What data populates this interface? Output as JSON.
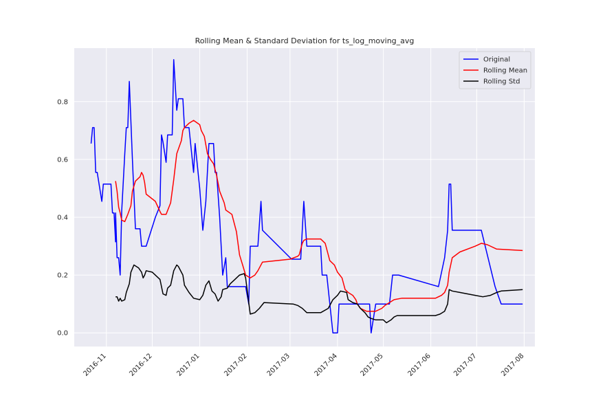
{
  "chart_data": {
    "type": "line",
    "title": "Rolling Mean & Standard Deviation for ts_log_moving_avg",
    "xlabel": "",
    "ylabel": "",
    "x_type": "date",
    "xlim": [
      "2016-10-11",
      "2017-08-08"
    ],
    "ylim": [
      -0.047,
      0.985
    ],
    "x_ticks": [
      "2016-11-01",
      "2016-12-01",
      "2017-01-01",
      "2017-02-01",
      "2017-03-01",
      "2017-04-01",
      "2017-05-01",
      "2017-06-01",
      "2017-07-01",
      "2017-08-01"
    ],
    "x_tick_labels": [
      "2016-11",
      "2016-12",
      "2017-01",
      "2017-02",
      "2017-03",
      "2017-04",
      "2017-05",
      "2017-06",
      "2017-07",
      "2017-08"
    ],
    "y_ticks": [
      0.0,
      0.2,
      0.4,
      0.6,
      0.8
    ],
    "y_tick_labels": [
      "0.0",
      "0.2",
      "0.4",
      "0.6",
      "0.8"
    ],
    "grid": true,
    "background": "#eaeaf2",
    "legend_position": "top-right",
    "series": [
      {
        "name": "Original",
        "color": "#0000ff",
        "points": [
          [
            "2016-10-22",
            0.655
          ],
          [
            "2016-10-23",
            0.71
          ],
          [
            "2016-10-24",
            0.71
          ],
          [
            "2016-10-25",
            0.555
          ],
          [
            "2016-10-26",
            0.555
          ],
          [
            "2016-10-29",
            0.455
          ],
          [
            "2016-10-30",
            0.515
          ],
          [
            "2016-11-04",
            0.515
          ],
          [
            "2016-11-05",
            0.415
          ],
          [
            "2016-11-06",
            0.415
          ],
          [
            "2016-11-07",
            0.315
          ],
          [
            "2016-11-07",
            0.415
          ],
          [
            "2016-11-08",
            0.26
          ],
          [
            "2016-11-09",
            0.26
          ],
          [
            "2016-11-10",
            0.2
          ],
          [
            "2016-11-11",
            0.42
          ],
          [
            "2016-11-13",
            0.62
          ],
          [
            "2016-11-14",
            0.71
          ],
          [
            "2016-11-15",
            0.71
          ],
          [
            "2016-11-16",
            0.87
          ],
          [
            "2016-11-18",
            0.6
          ],
          [
            "2016-11-20",
            0.36
          ],
          [
            "2016-11-23",
            0.36
          ],
          [
            "2016-11-24",
            0.3
          ],
          [
            "2016-11-27",
            0.3
          ],
          [
            "2016-12-03",
            0.4
          ],
          [
            "2016-12-06",
            0.44
          ],
          [
            "2016-12-07",
            0.685
          ],
          [
            "2016-12-08",
            0.66
          ],
          [
            "2016-12-10",
            0.59
          ],
          [
            "2016-12-11",
            0.685
          ],
          [
            "2016-12-14",
            0.685
          ],
          [
            "2016-12-15",
            0.945
          ],
          [
            "2016-12-17",
            0.77
          ],
          [
            "2016-12-18",
            0.81
          ],
          [
            "2016-12-21",
            0.81
          ],
          [
            "2016-12-22",
            0.71
          ],
          [
            "2016-12-25",
            0.71
          ],
          [
            "2016-12-28",
            0.555
          ],
          [
            "2016-12-29",
            0.655
          ],
          [
            "2017-01-01",
            0.5
          ],
          [
            "2017-01-03",
            0.355
          ],
          [
            "2017-01-05",
            0.455
          ],
          [
            "2017-01-07",
            0.655
          ],
          [
            "2017-01-10",
            0.655
          ],
          [
            "2017-01-11",
            0.555
          ],
          [
            "2017-01-12",
            0.555
          ],
          [
            "2017-01-14",
            0.4
          ],
          [
            "2017-01-16",
            0.2
          ],
          [
            "2017-01-18",
            0.26
          ],
          [
            "2017-01-19",
            0.16
          ],
          [
            "2017-01-26",
            0.16
          ],
          [
            "2017-01-31",
            0.16
          ],
          [
            "2017-02-02",
            0.1
          ],
          [
            "2017-02-03",
            0.3
          ],
          [
            "2017-02-08",
            0.3
          ],
          [
            "2017-02-10",
            0.455
          ],
          [
            "2017-02-11",
            0.355
          ],
          [
            "2017-03-02",
            0.255
          ],
          [
            "2017-03-08",
            0.255
          ],
          [
            "2017-03-10",
            0.455
          ],
          [
            "2017-03-12",
            0.3
          ],
          [
            "2017-03-21",
            0.3
          ],
          [
            "2017-03-22",
            0.2
          ],
          [
            "2017-03-25",
            0.2
          ],
          [
            "2017-03-29",
            0.0
          ],
          [
            "2017-04-01",
            0.0
          ],
          [
            "2017-04-02",
            0.1
          ],
          [
            "2017-04-22",
            0.1
          ],
          [
            "2017-04-23",
            0.0
          ],
          [
            "2017-04-26",
            0.1
          ],
          [
            "2017-05-05",
            0.1
          ],
          [
            "2017-05-07",
            0.2
          ],
          [
            "2017-05-11",
            0.2
          ],
          [
            "2017-06-06",
            0.16
          ],
          [
            "2017-06-10",
            0.26
          ],
          [
            "2017-06-12",
            0.355
          ],
          [
            "2017-06-13",
            0.515
          ],
          [
            "2017-06-14",
            0.515
          ],
          [
            "2017-06-15",
            0.355
          ],
          [
            "2017-07-04",
            0.355
          ],
          [
            "2017-07-13",
            0.16
          ],
          [
            "2017-07-17",
            0.1
          ],
          [
            "2017-07-31",
            0.1
          ]
        ]
      },
      {
        "name": "Rolling Mean",
        "color": "#ff0000",
        "points": [
          [
            "2016-11-07",
            0.525
          ],
          [
            "2016-11-08",
            0.49
          ],
          [
            "2016-11-09",
            0.435
          ],
          [
            "2016-11-10",
            0.415
          ],
          [
            "2016-11-11",
            0.39
          ],
          [
            "2016-11-13",
            0.385
          ],
          [
            "2016-11-15",
            0.41
          ],
          [
            "2016-11-17",
            0.44
          ],
          [
            "2016-11-18",
            0.49
          ],
          [
            "2016-11-20",
            0.525
          ],
          [
            "2016-11-23",
            0.54
          ],
          [
            "2016-11-24",
            0.555
          ],
          [
            "2016-11-25",
            0.545
          ],
          [
            "2016-11-26",
            0.52
          ],
          [
            "2016-11-27",
            0.48
          ],
          [
            "2016-12-03",
            0.455
          ],
          [
            "2016-12-06",
            0.42
          ],
          [
            "2016-12-07",
            0.41
          ],
          [
            "2016-12-10",
            0.41
          ],
          [
            "2016-12-13",
            0.45
          ],
          [
            "2016-12-15",
            0.53
          ],
          [
            "2016-12-17",
            0.62
          ],
          [
            "2016-12-20",
            0.665
          ],
          [
            "2016-12-21",
            0.7
          ],
          [
            "2016-12-22",
            0.71
          ],
          [
            "2016-12-25",
            0.725
          ],
          [
            "2016-12-28",
            0.735
          ],
          [
            "2017-01-01",
            0.72
          ],
          [
            "2017-01-02",
            0.7
          ],
          [
            "2017-01-04",
            0.68
          ],
          [
            "2017-01-06",
            0.62
          ],
          [
            "2017-01-08",
            0.6
          ],
          [
            "2017-01-10",
            0.585
          ],
          [
            "2017-01-12",
            0.545
          ],
          [
            "2017-01-14",
            0.49
          ],
          [
            "2017-01-17",
            0.45
          ],
          [
            "2017-01-18",
            0.425
          ],
          [
            "2017-01-22",
            0.41
          ],
          [
            "2017-01-25",
            0.35
          ],
          [
            "2017-01-27",
            0.27
          ],
          [
            "2017-01-29",
            0.235
          ],
          [
            "2017-01-31",
            0.2
          ],
          [
            "2017-02-03",
            0.19
          ],
          [
            "2017-02-06",
            0.2
          ],
          [
            "2017-02-08",
            0.215
          ],
          [
            "2017-02-11",
            0.245
          ],
          [
            "2017-03-01",
            0.255
          ],
          [
            "2017-03-06",
            0.265
          ],
          [
            "2017-03-07",
            0.27
          ],
          [
            "2017-03-09",
            0.31
          ],
          [
            "2017-03-10",
            0.32
          ],
          [
            "2017-03-12",
            0.325
          ],
          [
            "2017-03-21",
            0.325
          ],
          [
            "2017-03-24",
            0.31
          ],
          [
            "2017-03-27",
            0.25
          ],
          [
            "2017-03-30",
            0.235
          ],
          [
            "2017-04-01",
            0.21
          ],
          [
            "2017-04-04",
            0.19
          ],
          [
            "2017-04-06",
            0.15
          ],
          [
            "2017-04-08",
            0.14
          ],
          [
            "2017-04-11",
            0.13
          ],
          [
            "2017-04-13",
            0.115
          ],
          [
            "2017-04-14",
            0.1
          ],
          [
            "2017-04-16",
            0.085
          ],
          [
            "2017-04-20",
            0.075
          ],
          [
            "2017-04-26",
            0.075
          ],
          [
            "2017-04-30",
            0.085
          ],
          [
            "2017-05-02",
            0.095
          ],
          [
            "2017-05-05",
            0.105
          ],
          [
            "2017-05-08",
            0.115
          ],
          [
            "2017-05-13",
            0.12
          ],
          [
            "2017-06-04",
            0.12
          ],
          [
            "2017-06-08",
            0.13
          ],
          [
            "2017-06-10",
            0.14
          ],
          [
            "2017-06-12",
            0.165
          ],
          [
            "2017-06-13",
            0.21
          ],
          [
            "2017-06-15",
            0.26
          ],
          [
            "2017-06-20",
            0.28
          ],
          [
            "2017-06-30",
            0.3
          ],
          [
            "2017-07-04",
            0.31
          ],
          [
            "2017-07-08",
            0.305
          ],
          [
            "2017-07-14",
            0.29
          ],
          [
            "2017-07-31",
            0.285
          ]
        ]
      },
      {
        "name": "Rolling Std",
        "color": "#000000",
        "points": [
          [
            "2016-11-07",
            0.125
          ],
          [
            "2016-11-08",
            0.125
          ],
          [
            "2016-11-09",
            0.11
          ],
          [
            "2016-11-10",
            0.12
          ],
          [
            "2016-11-11",
            0.11
          ],
          [
            "2016-11-13",
            0.115
          ],
          [
            "2016-11-14",
            0.14
          ],
          [
            "2016-11-16",
            0.17
          ],
          [
            "2016-11-17",
            0.21
          ],
          [
            "2016-11-19",
            0.235
          ],
          [
            "2016-11-22",
            0.225
          ],
          [
            "2016-11-24",
            0.21
          ],
          [
            "2016-11-25",
            0.19
          ],
          [
            "2016-11-26",
            0.2
          ],
          [
            "2016-11-27",
            0.215
          ],
          [
            "2016-12-01",
            0.21
          ],
          [
            "2016-12-06",
            0.185
          ],
          [
            "2016-12-08",
            0.135
          ],
          [
            "2016-12-10",
            0.13
          ],
          [
            "2016-12-11",
            0.155
          ],
          [
            "2016-12-13",
            0.165
          ],
          [
            "2016-12-15",
            0.215
          ],
          [
            "2016-12-17",
            0.235
          ],
          [
            "2016-12-18",
            0.23
          ],
          [
            "2016-12-21",
            0.2
          ],
          [
            "2016-12-22",
            0.165
          ],
          [
            "2016-12-25",
            0.14
          ],
          [
            "2016-12-28",
            0.12
          ],
          [
            "2017-01-01",
            0.115
          ],
          [
            "2017-01-03",
            0.13
          ],
          [
            "2017-01-05",
            0.165
          ],
          [
            "2017-01-07",
            0.18
          ],
          [
            "2017-01-09",
            0.145
          ],
          [
            "2017-01-11",
            0.135
          ],
          [
            "2017-01-13",
            0.11
          ],
          [
            "2017-01-15",
            0.125
          ],
          [
            "2017-01-16",
            0.15
          ],
          [
            "2017-01-19",
            0.155
          ],
          [
            "2017-01-21",
            0.17
          ],
          [
            "2017-01-24",
            0.185
          ],
          [
            "2017-01-27",
            0.2
          ],
          [
            "2017-01-30",
            0.205
          ],
          [
            "2017-01-31",
            0.19
          ],
          [
            "2017-02-02",
            0.105
          ],
          [
            "2017-02-03",
            0.065
          ],
          [
            "2017-02-06",
            0.07
          ],
          [
            "2017-02-09",
            0.085
          ],
          [
            "2017-02-12",
            0.105
          ],
          [
            "2017-03-03",
            0.1
          ],
          [
            "2017-03-06",
            0.095
          ],
          [
            "2017-03-09",
            0.085
          ],
          [
            "2017-03-11",
            0.075
          ],
          [
            "2017-03-12",
            0.07
          ],
          [
            "2017-03-21",
            0.07
          ],
          [
            "2017-03-26",
            0.085
          ],
          [
            "2017-03-29",
            0.115
          ],
          [
            "2017-04-01",
            0.13
          ],
          [
            "2017-04-03",
            0.145
          ],
          [
            "2017-04-07",
            0.14
          ],
          [
            "2017-04-08",
            0.115
          ],
          [
            "2017-04-11",
            0.105
          ],
          [
            "2017-04-14",
            0.1
          ],
          [
            "2017-04-16",
            0.085
          ],
          [
            "2017-04-19",
            0.07
          ],
          [
            "2017-04-21",
            0.055
          ],
          [
            "2017-04-23",
            0.05
          ],
          [
            "2017-04-26",
            0.045
          ],
          [
            "2017-05-01",
            0.045
          ],
          [
            "2017-05-03",
            0.035
          ],
          [
            "2017-05-06",
            0.045
          ],
          [
            "2017-05-08",
            0.055
          ],
          [
            "2017-05-10",
            0.06
          ],
          [
            "2017-06-04",
            0.06
          ],
          [
            "2017-06-07",
            0.065
          ],
          [
            "2017-06-10",
            0.075
          ],
          [
            "2017-06-12",
            0.1
          ],
          [
            "2017-06-13",
            0.15
          ],
          [
            "2017-06-15",
            0.145
          ],
          [
            "2017-06-20",
            0.14
          ],
          [
            "2017-06-30",
            0.13
          ],
          [
            "2017-07-05",
            0.125
          ],
          [
            "2017-07-10",
            0.13
          ],
          [
            "2017-07-14",
            0.14
          ],
          [
            "2017-07-17",
            0.145
          ],
          [
            "2017-07-31",
            0.15
          ]
        ]
      }
    ]
  }
}
